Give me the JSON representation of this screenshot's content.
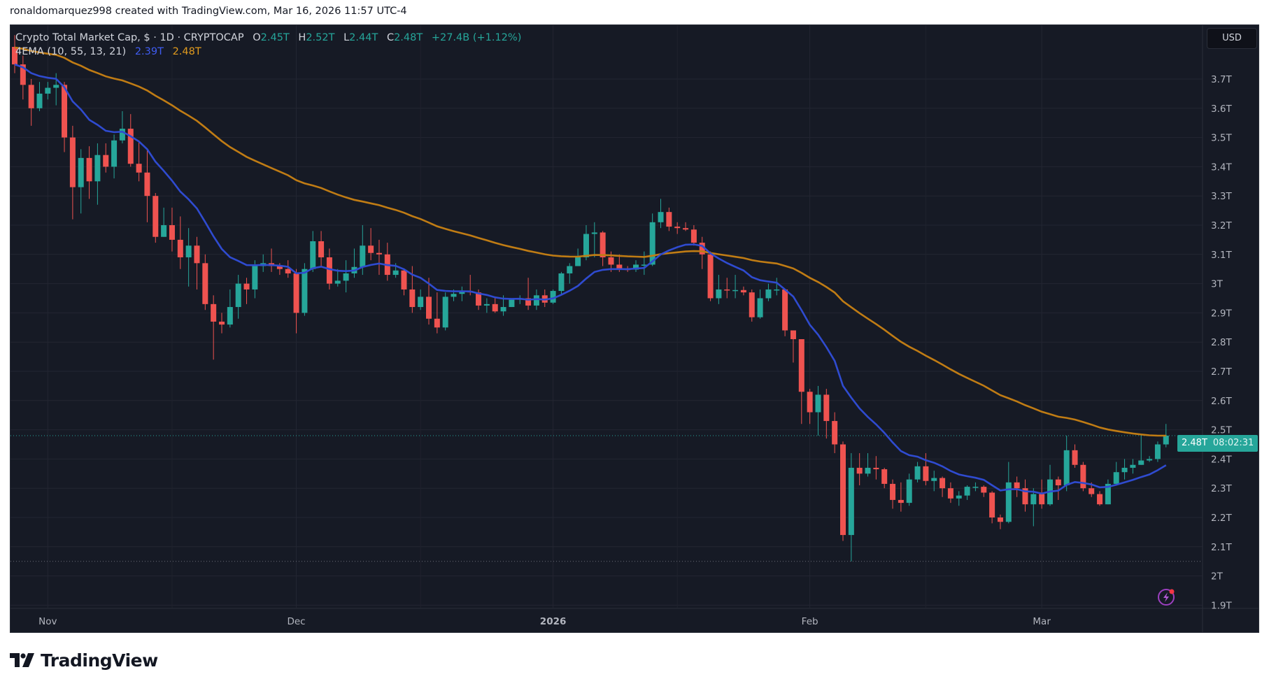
{
  "credit": "ronaldomarquez998 created with TradingView.com, Mar 16, 2026 11:57 UTC-4",
  "legend": {
    "symbol": "Crypto Total Market Cap, $ · 1D · CRYPTOCAP",
    "o_label": "O",
    "o": "2.45T",
    "h_label": "H",
    "h": "2.52T",
    "l_label": "L",
    "l": "2.44T",
    "c_label": "C",
    "c": "2.48T",
    "change": "+27.4B (+1.12%)",
    "indicator": "4EMA (10, 55, 13, 21)",
    "ema_fast": "2.39T",
    "ema_slow": "2.48T"
  },
  "currency_button": "USD",
  "last_price": {
    "value": "2.48T",
    "countdown": "08:02:31"
  },
  "logo": "TradingView",
  "colors": {
    "up": "#26a69a",
    "down": "#ef5350",
    "ema_fast": "#2f4bd0",
    "ema_slow": "#c07c14",
    "background": "#161a25"
  },
  "icons": [
    "lightning-alert-icon",
    "tradingview-logo-icon"
  ],
  "chart_data": {
    "type": "candlestick",
    "interval": "1D",
    "ylim": [
      1.88,
      3.85
    ],
    "y_unit": "T",
    "y_ticks": [
      "3.7T",
      "3.6T",
      "3.5T",
      "3.4T",
      "3.3T",
      "3.2T",
      "3.1T",
      "3T",
      "2.9T",
      "2.8T",
      "2.7T",
      "2.6T",
      "2.5T",
      "2.4T",
      "2.3T",
      "2.2T",
      "2.1T",
      "2T",
      "1.9T"
    ],
    "x_ticks": [
      "Nov",
      "Dec",
      "2026",
      "Feb",
      "Mar"
    ],
    "grid": true,
    "reference_lines": {
      "last_price": 2.48,
      "low_marker": 2.05
    },
    "ema_periods_drawn": [
      13,
      55
    ],
    "open": [
      3.81,
      3.75,
      3.68,
      3.6,
      3.65,
      3.67,
      3.68,
      3.5,
      3.33,
      3.43,
      3.35,
      3.44,
      3.4,
      3.49,
      3.53,
      3.41,
      3.38,
      3.3,
      3.16,
      3.2,
      3.15,
      3.09,
      3.13,
      3.07,
      2.93,
      2.87,
      2.86,
      2.92,
      3.0,
      2.98,
      3.06,
      3.07,
      3.06,
      3.05,
      3.035,
      2.9,
      3.05,
      3.145,
      3.09,
      3.0,
      3.01,
      3.035,
      3.057,
      3.13,
      3.105,
      3.1,
      3.03,
      3.045,
      2.98,
      2.92,
      2.955,
      2.88,
      2.85,
      2.955,
      2.965,
      2.975,
      2.97,
      2.925,
      2.93,
      2.905,
      2.92,
      2.945,
      2.95,
      2.925,
      2.96,
      2.935,
      2.975,
      3.035,
      3.06,
      3.09,
      3.17,
      3.175,
      3.09,
      3.065,
      3.05,
      3.048,
      3.065,
      3.065,
      3.21,
      3.245,
      3.195,
      3.19,
      3.185,
      3.14,
      3.1,
      2.95,
      2.98,
      2.978,
      2.978,
      2.97,
      2.885,
      2.95,
      2.98,
      2.98,
      2.84,
      2.81,
      2.63,
      2.56,
      2.62,
      2.53,
      2.45,
      2.14,
      2.37,
      2.35,
      2.37,
      2.365,
      2.315,
      2.26,
      2.25,
      2.33,
      2.375,
      2.325,
      2.335,
      2.3,
      2.265,
      2.275,
      2.305,
      2.305,
      2.285,
      2.2,
      2.185,
      2.32,
      2.3,
      2.245,
      2.28,
      2.245,
      2.33,
      2.31,
      2.43,
      2.38,
      2.3,
      2.28,
      2.245,
      2.315,
      2.355,
      2.37,
      2.38,
      2.395,
      2.4,
      2.45
    ],
    "high": [
      3.85,
      3.78,
      3.7,
      3.69,
      3.69,
      3.72,
      3.69,
      3.54,
      3.46,
      3.47,
      3.48,
      3.48,
      3.51,
      3.59,
      3.58,
      3.49,
      3.46,
      3.31,
      3.26,
      3.26,
      3.23,
      3.19,
      3.16,
      3.1,
      2.96,
      2.9,
      2.98,
      3.03,
      3.02,
      3.08,
      3.1,
      3.12,
      3.07,
      3.08,
      3.05,
      3.07,
      3.18,
      3.18,
      3.12,
      3.05,
      3.08,
      3.12,
      3.2,
      3.19,
      3.15,
      3.14,
      3.07,
      3.05,
      3.06,
      2.98,
      3.02,
      2.97,
      2.97,
      2.98,
      2.99,
      3.03,
      2.98,
      2.95,
      2.95,
      2.96,
      2.95,
      2.96,
      3.02,
      2.98,
      2.98,
      2.98,
      3.04,
      3.07,
      3.12,
      3.2,
      3.21,
      3.18,
      3.11,
      3.1,
      3.06,
      3.08,
      3.11,
      3.24,
      3.29,
      3.26,
      3.21,
      3.21,
      3.2,
      3.16,
      3.11,
      3.03,
      3.02,
      3.03,
      2.99,
      2.98,
      2.98,
      3.0,
      3.02,
      2.98,
      2.84,
      2.81,
      2.64,
      2.65,
      2.64,
      2.56,
      2.46,
      2.42,
      2.42,
      2.42,
      2.41,
      2.37,
      2.33,
      2.32,
      2.35,
      2.39,
      2.42,
      2.36,
      2.34,
      2.32,
      2.29,
      2.31,
      2.32,
      2.31,
      2.29,
      2.21,
      2.39,
      2.34,
      2.33,
      2.3,
      2.33,
      2.38,
      2.34,
      2.48,
      2.45,
      2.39,
      2.32,
      2.29,
      2.33,
      2.39,
      2.4,
      2.4,
      2.48,
      2.41,
      2.46,
      2.52
    ],
    "low": [
      3.72,
      3.63,
      3.54,
      3.59,
      3.63,
      3.61,
      3.45,
      3.22,
      3.24,
      3.29,
      3.27,
      3.38,
      3.36,
      3.48,
      3.4,
      3.35,
      3.21,
      3.14,
      3.16,
      3.11,
      3.05,
      2.99,
      2.98,
      2.91,
      2.74,
      2.83,
      2.85,
      2.88,
      2.93,
      2.95,
      3.04,
      3.04,
      3.03,
      3.02,
      2.83,
      2.89,
      3.04,
      3.06,
      2.98,
      2.99,
      2.97,
      3.02,
      3.03,
      3.08,
      3.03,
      3.01,
      3.02,
      2.96,
      2.9,
      2.91,
      2.86,
      2.83,
      2.84,
      2.94,
      2.94,
      2.96,
      2.91,
      2.9,
      2.9,
      2.89,
      2.92,
      2.93,
      2.91,
      2.91,
      2.92,
      2.93,
      2.96,
      3.0,
      3.06,
      3.08,
      3.09,
      3.06,
      3.04,
      3.04,
      3.04,
      3.04,
      3.03,
      3.06,
      3.19,
      3.18,
      3.17,
      3.18,
      3.13,
      3.05,
      2.94,
      2.93,
      2.95,
      2.95,
      2.96,
      2.87,
      2.88,
      2.94,
      2.96,
      2.82,
      2.73,
      2.52,
      2.52,
      2.48,
      2.47,
      2.42,
      2.12,
      2.05,
      2.31,
      2.34,
      2.33,
      2.3,
      2.23,
      2.22,
      2.24,
      2.32,
      2.31,
      2.29,
      2.27,
      2.25,
      2.24,
      2.26,
      2.29,
      2.27,
      2.18,
      2.16,
      2.18,
      2.27,
      2.22,
      2.17,
      2.23,
      2.24,
      2.26,
      2.29,
      2.37,
      2.29,
      2.27,
      2.24,
      2.245,
      2.31,
      2.33,
      2.35,
      2.38,
      2.39,
      2.39,
      2.44
    ],
    "close": [
      3.75,
      3.68,
      3.6,
      3.65,
      3.67,
      3.68,
      3.5,
      3.33,
      3.43,
      3.35,
      3.44,
      3.4,
      3.49,
      3.53,
      3.41,
      3.38,
      3.3,
      3.16,
      3.2,
      3.15,
      3.09,
      3.13,
      3.07,
      2.93,
      2.87,
      2.86,
      2.92,
      3.0,
      2.98,
      3.06,
      3.07,
      3.06,
      3.05,
      3.035,
      2.9,
      3.05,
      3.145,
      3.09,
      3.0,
      3.01,
      3.035,
      3.057,
      3.13,
      3.105,
      3.1,
      3.03,
      3.045,
      2.98,
      2.92,
      2.955,
      2.88,
      2.85,
      2.955,
      2.965,
      2.975,
      2.97,
      2.925,
      2.93,
      2.905,
      2.92,
      2.945,
      2.95,
      2.925,
      2.96,
      2.935,
      2.975,
      3.035,
      3.06,
      3.09,
      3.17,
      3.175,
      3.09,
      3.065,
      3.05,
      3.048,
      3.065,
      3.065,
      3.21,
      3.245,
      3.195,
      3.19,
      3.185,
      3.14,
      3.1,
      2.95,
      2.98,
      2.978,
      2.978,
      2.97,
      2.885,
      2.95,
      2.98,
      2.98,
      2.84,
      2.81,
      2.63,
      2.56,
      2.62,
      2.53,
      2.45,
      2.14,
      2.37,
      2.35,
      2.37,
      2.365,
      2.315,
      2.26,
      2.25,
      2.33,
      2.375,
      2.325,
      2.335,
      2.3,
      2.265,
      2.275,
      2.305,
      2.305,
      2.285,
      2.2,
      2.185,
      2.32,
      2.3,
      2.245,
      2.28,
      2.245,
      2.33,
      2.31,
      2.43,
      2.38,
      2.3,
      2.28,
      2.245,
      2.315,
      2.355,
      2.37,
      2.38,
      2.395,
      2.4,
      2.45,
      2.48
    ]
  }
}
